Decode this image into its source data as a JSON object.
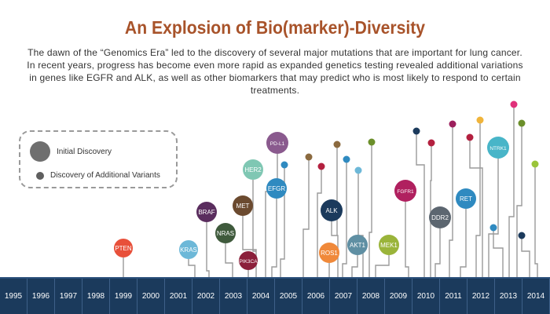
{
  "title": "An Explosion of Bio(marker)-Diversity",
  "intro": "The dawn of the “Genomics Era” led to the discovery of several major mutations that are important for lung cancer. In recent years, progress has become even more rapid as expanded genetics testing revealed additional variations in genes like EGFR and ALK, as well as other biomarkers that may predict who is most likely to respond to certain treatments.",
  "legend": {
    "initial_label": "Initial Discovery",
    "variants_label": "Discovery of Additional Variants"
  },
  "years": [
    "1995",
    "1996",
    "1997",
    "1998",
    "1999",
    "2000",
    "2001",
    "2002",
    "2003",
    "2004",
    "2005",
    "2006",
    "2007",
    "2008",
    "2009",
    "2010",
    "2011",
    "2012",
    "2013",
    "2014"
  ],
  "colors": {
    "title": "#a8532a",
    "year_bar": "#1b3a5c",
    "stem": "#9a9a9a",
    "legend_dot": "#6f6f6f"
  },
  "markers": [
    {
      "label": "PTEN",
      "year": "1999",
      "color": "#e8503a"
    },
    {
      "label": "KRAS",
      "year": "2001",
      "color": "#6db8d8"
    },
    {
      "label": "BRAF",
      "year": "2002",
      "color": "#5a2d5e"
    },
    {
      "label": "NRAS",
      "year": "2002",
      "color": "#3f5a3c"
    },
    {
      "label": "MET",
      "year": "2003",
      "color": "#6b4a2f"
    },
    {
      "label": "PIK3CA",
      "year": "2003",
      "color": "#8b1f3a"
    },
    {
      "label": "HER2",
      "year": "2003",
      "color": "#7fc7b3"
    },
    {
      "label": "PD-L1",
      "year": "2004",
      "color": "#8a5a8e"
    },
    {
      "label": "EFGR",
      "year": "2004",
      "color": "#2f8ac0"
    },
    {
      "label": "ALK",
      "year": "2006",
      "color": "#1b3a5c"
    },
    {
      "label": "ROS1",
      "year": "2006",
      "color": "#f0893a"
    },
    {
      "label": "AKT1",
      "year": "2007",
      "color": "#5f8fa3"
    },
    {
      "label": "MEK1",
      "year": "2008",
      "color": "#9ab43a"
    },
    {
      "label": "FGFR1",
      "year": "2009",
      "color": "#b0205f"
    },
    {
      "label": "DDR2",
      "year": "2010",
      "color": "#5c6670"
    },
    {
      "label": "RET",
      "year": "2011",
      "color": "#2f8ac0"
    },
    {
      "label": "NTRK1",
      "year": "2012",
      "color": "#48b5c8"
    }
  ],
  "variants": [
    {
      "year": "2004",
      "color": "#2f8ac0"
    },
    {
      "year": "2005",
      "color": "#8b6a3f"
    },
    {
      "year": "2005",
      "color": "#b3203f"
    },
    {
      "year": "2006",
      "color": "#8b6a3f"
    },
    {
      "year": "2006",
      "color": "#2f8ac0"
    },
    {
      "year": "2007",
      "color": "#6db8d8"
    },
    {
      "year": "2007",
      "color": "#6b8f2a"
    },
    {
      "year": "2009",
      "color": "#1b3a5c"
    },
    {
      "year": "2010",
      "color": "#b3203f"
    },
    {
      "year": "2010",
      "color": "#9c1f5c"
    },
    {
      "year": "2011",
      "color": "#f0b43a"
    },
    {
      "year": "2011",
      "color": "#b3203f"
    },
    {
      "year": "2012",
      "color": "#2f8ac0"
    },
    {
      "year": "2012",
      "color": "#e0307a"
    },
    {
      "year": "2013",
      "color": "#6b8f2a"
    },
    {
      "year": "2013",
      "color": "#1b3a5c"
    },
    {
      "year": "2014",
      "color": "#9ac43a"
    }
  ]
}
